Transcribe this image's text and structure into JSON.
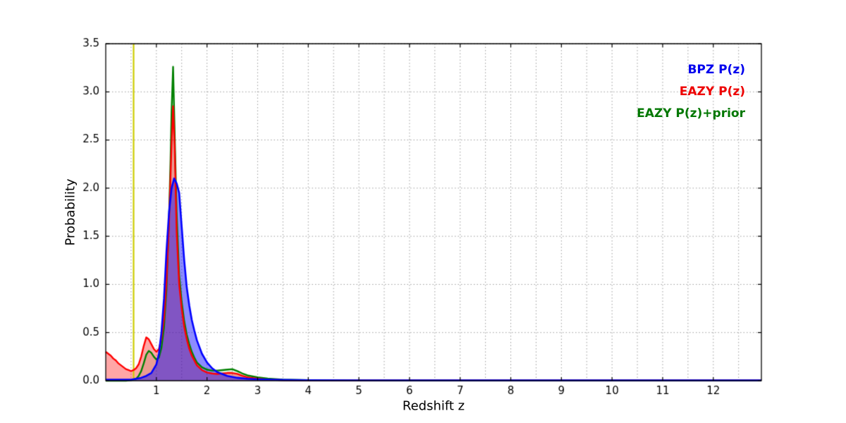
{
  "figure": {
    "background": "#ffffff"
  },
  "chart_data": {
    "type": "line",
    "title": "",
    "xlabel": "Redshift z",
    "ylabel": "Probability",
    "xlim": [
      0,
      12.95
    ],
    "ylim": [
      0,
      3.5
    ],
    "x_ticks": [
      1,
      2,
      3,
      4,
      5,
      6,
      7,
      8,
      9,
      10,
      11,
      12
    ],
    "x_tick_labels": [
      "1",
      "2",
      "3",
      "4",
      "5",
      "6",
      "7",
      "8",
      "9",
      "10",
      "11",
      "12"
    ],
    "y_ticks": [
      0.0,
      0.5,
      1.0,
      1.5,
      2.0,
      2.5,
      3.0,
      3.5
    ],
    "y_tick_labels": [
      "0.0",
      "0.5",
      "1.0",
      "1.5",
      "2.0",
      "2.5",
      "3.0",
      "3.5"
    ],
    "grid": {
      "show": true,
      "x_step": 0.5,
      "y_step": 0.5,
      "color": "#9a9a9a",
      "style": "dotted"
    },
    "marker_line": {
      "x": 0.55,
      "color": "#cccc00",
      "width": 2.2
    },
    "legend": {
      "position": "upper-right",
      "entries": [
        {
          "label": "BPZ P(z)",
          "color": "#0000ee"
        },
        {
          "label": "EAZY P(z)",
          "color": "#ee0000"
        },
        {
          "label": "EAZY P(z)+prior",
          "color": "#007700"
        }
      ]
    },
    "series": [
      {
        "name": "EAZY P(z)+prior",
        "color": "#008000",
        "fill": "rgba(0,128,0,0.12)",
        "width": 2.4,
        "x": [
          0,
          0.4,
          0.5,
          0.6,
          0.65,
          0.7,
          0.75,
          0.8,
          0.85,
          0.9,
          0.95,
          1.0,
          1.05,
          1.1,
          1.15,
          1.2,
          1.25,
          1.28,
          1.3,
          1.33,
          1.36,
          1.4,
          1.45,
          1.5,
          1.55,
          1.6,
          1.65,
          1.7,
          1.75,
          1.8,
          1.9,
          2.0,
          2.1,
          2.2,
          2.3,
          2.4,
          2.5,
          2.6,
          2.7,
          2.8,
          3.0,
          3.2,
          3.5,
          4.0,
          4.5,
          5,
          6,
          8,
          10,
          12,
          12.95
        ],
        "y": [
          0,
          0,
          0.005,
          0.02,
          0.05,
          0.1,
          0.18,
          0.27,
          0.31,
          0.29,
          0.25,
          0.22,
          0.24,
          0.34,
          0.55,
          0.95,
          1.7,
          2.3,
          2.8,
          3.26,
          2.6,
          1.75,
          1.1,
          0.82,
          0.62,
          0.48,
          0.38,
          0.3,
          0.24,
          0.19,
          0.14,
          0.115,
          0.105,
          0.105,
          0.11,
          0.115,
          0.12,
          0.1,
          0.075,
          0.055,
          0.035,
          0.022,
          0.012,
          0.006,
          0.003,
          0.002,
          0.002,
          0.002,
          0.002,
          0.002,
          0.002
        ]
      },
      {
        "name": "EAZY P(z)",
        "color": "#ff0000",
        "fill": "rgba(255,0,0,0.35)",
        "width": 2.4,
        "x": [
          0,
          0.05,
          0.1,
          0.15,
          0.2,
          0.25,
          0.3,
          0.35,
          0.4,
          0.45,
          0.5,
          0.55,
          0.6,
          0.65,
          0.7,
          0.75,
          0.8,
          0.85,
          0.9,
          0.95,
          1.0,
          1.05,
          1.1,
          1.15,
          1.2,
          1.25,
          1.3,
          1.33,
          1.36,
          1.4,
          1.45,
          1.5,
          1.55,
          1.6,
          1.65,
          1.7,
          1.75,
          1.8,
          1.9,
          2.0,
          2.1,
          2.2,
          2.3,
          2.4,
          2.5,
          2.6,
          2.7,
          2.8,
          3.0,
          3.2,
          3.5,
          4.0,
          5,
          6,
          8,
          10,
          12,
          12.95
        ],
        "y": [
          0.3,
          0.28,
          0.26,
          0.23,
          0.21,
          0.18,
          0.16,
          0.14,
          0.12,
          0.11,
          0.1,
          0.11,
          0.13,
          0.17,
          0.25,
          0.36,
          0.45,
          0.43,
          0.38,
          0.33,
          0.3,
          0.33,
          0.44,
          0.65,
          1.05,
          1.65,
          2.45,
          2.85,
          2.45,
          1.55,
          1.0,
          0.75,
          0.56,
          0.43,
          0.33,
          0.26,
          0.21,
          0.16,
          0.11,
          0.085,
          0.075,
          0.07,
          0.075,
          0.08,
          0.08,
          0.07,
          0.05,
          0.035,
          0.02,
          0.012,
          0.006,
          0.003,
          0.002,
          0.002,
          0.002,
          0.002,
          0.002,
          0.002
        ]
      },
      {
        "name": "BPZ P(z)",
        "color": "#0000ff",
        "fill": "rgba(0,0,255,0.45)",
        "width": 2.6,
        "x": [
          0,
          0.3,
          0.5,
          0.6,
          0.7,
          0.8,
          0.9,
          1.0,
          1.05,
          1.1,
          1.15,
          1.2,
          1.25,
          1.3,
          1.35,
          1.4,
          1.45,
          1.5,
          1.55,
          1.6,
          1.65,
          1.7,
          1.75,
          1.8,
          1.9,
          2.0,
          2.1,
          2.2,
          2.3,
          2.4,
          2.6,
          2.8,
          3.0,
          3.5,
          4.0,
          5,
          6,
          8,
          10,
          12,
          12.95
        ],
        "y": [
          0.01,
          0.01,
          0.01,
          0.02,
          0.03,
          0.05,
          0.08,
          0.17,
          0.28,
          0.5,
          0.85,
          1.35,
          1.75,
          2.0,
          2.1,
          2.05,
          1.95,
          1.6,
          1.25,
          0.97,
          0.78,
          0.63,
          0.52,
          0.42,
          0.28,
          0.19,
          0.13,
          0.09,
          0.07,
          0.05,
          0.03,
          0.02,
          0.015,
          0.008,
          0.005,
          0.004,
          0.003,
          0.003,
          0.003,
          0.003,
          0.003
        ]
      }
    ]
  }
}
